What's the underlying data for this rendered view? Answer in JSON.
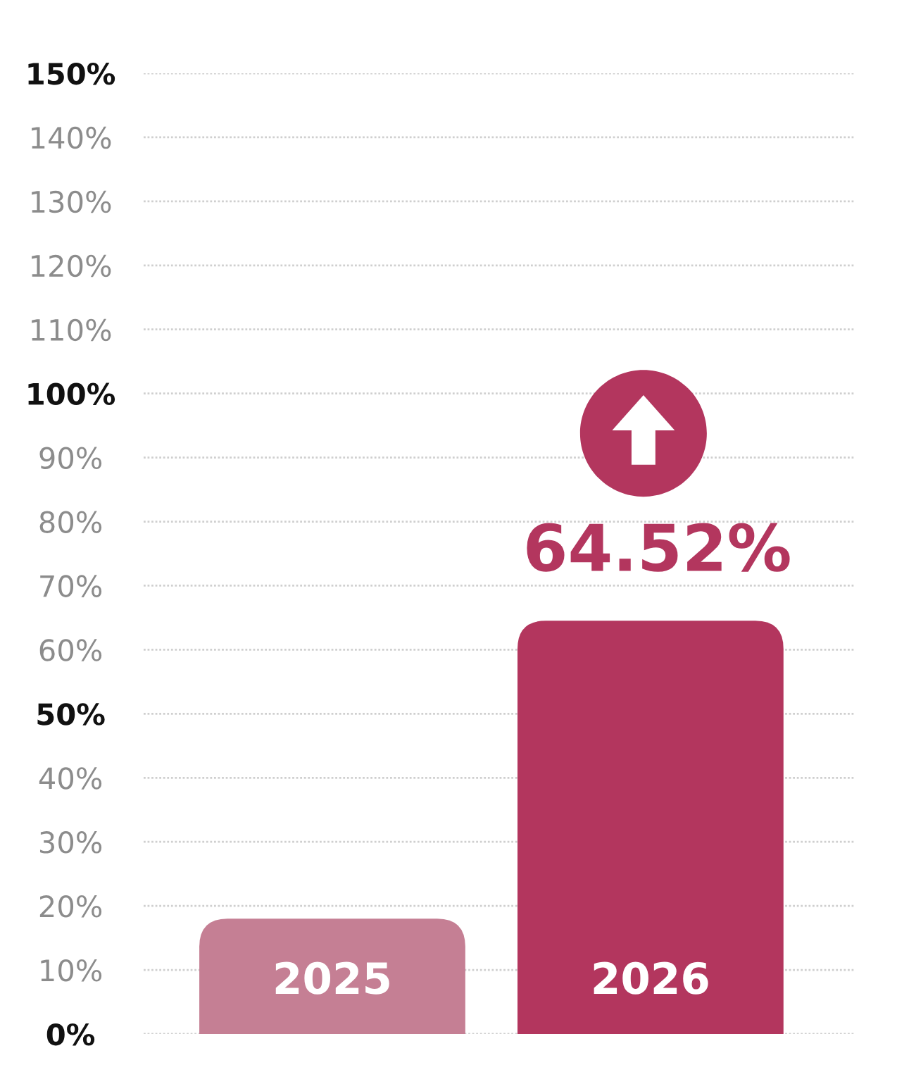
{
  "chart_data": {
    "type": "bar",
    "categories": [
      "2025",
      "2026"
    ],
    "values": [
      18,
      64.52
    ],
    "colors": [
      "#c57f94",
      "#b3365e"
    ],
    "value_labels": [
      null,
      "64.52%"
    ],
    "ylim": [
      0,
      150
    ],
    "yticks": [
      {
        "value": 0,
        "label": "0%"
      },
      {
        "value": 10,
        "label": "10%"
      },
      {
        "value": 20,
        "label": "20%"
      },
      {
        "value": 30,
        "label": "30%"
      },
      {
        "value": 40,
        "label": "40%"
      },
      {
        "value": 50,
        "label": "50%"
      },
      {
        "value": 60,
        "label": "60%"
      },
      {
        "value": 70,
        "label": "70%"
      },
      {
        "value": 80,
        "label": "80%"
      },
      {
        "value": 90,
        "label": "90%"
      },
      {
        "value": 100,
        "label": "100%"
      },
      {
        "value": 110,
        "label": "110%"
      },
      {
        "value": 120,
        "label": "120%"
      },
      {
        "value": 130,
        "label": "130%"
      },
      {
        "value": 140,
        "label": "140%"
      },
      {
        "value": 150,
        "label": "150%"
      }
    ],
    "grid": "y"
  }
}
